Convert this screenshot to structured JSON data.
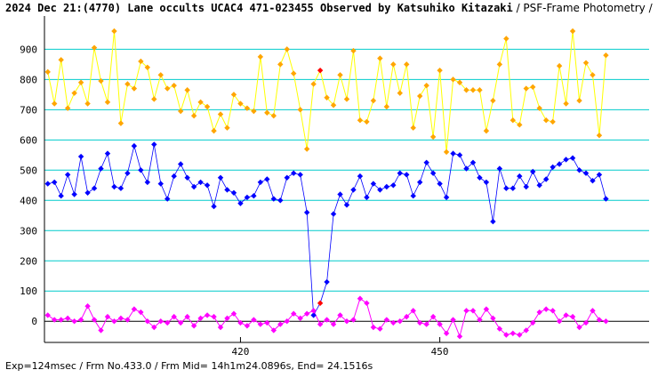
{
  "header": {
    "title": "2024 Dec 21:(4770) Lane occults UCAC4 471-023455 Observed by Katsuhiko Kitazaki",
    "subtitle": " / PSF-Frame Photometry /"
  },
  "footer": {
    "text": "Exp=124msec / Frm No.433.0 / Frm Mid= 14h1m24.0896s, End= 24.1516s"
  },
  "chart_data": {
    "type": "line",
    "x_start": 391,
    "x_step": 1,
    "xlim": [
      390.5,
      481.5
    ],
    "ylim": [
      -70,
      1010
    ],
    "yticks": [
      0,
      100,
      200,
      300,
      400,
      500,
      600,
      700,
      800,
      900
    ],
    "xticks": [
      420,
      450
    ],
    "grid_y": true,
    "colors": {
      "target": "#0000ff",
      "comparison": "#ffff00",
      "comparison_marker": "#ffa500",
      "background": "#ff00ff",
      "highlight": "#ff0000",
      "grid": "#00cccc"
    },
    "highlight_index": 41,
    "series": [
      {
        "key": "comparison",
        "values": [
          825,
          720,
          865,
          705,
          755,
          790,
          720,
          905,
          795,
          725,
          960,
          655,
          785,
          770,
          860,
          840,
          735,
          815,
          770,
          780,
          695,
          765,
          680,
          725,
          710,
          630,
          685,
          640,
          750,
          720,
          705,
          695,
          875,
          690,
          680,
          850,
          900,
          820,
          700,
          570,
          785,
          830,
          740,
          715,
          815,
          735,
          895,
          665,
          660,
          730,
          870,
          710,
          850,
          755,
          850,
          640,
          745,
          780,
          610,
          830,
          560,
          800,
          790,
          765,
          765,
          765,
          630,
          730,
          850,
          935,
          665,
          650,
          770,
          775,
          705,
          665,
          660,
          845,
          720,
          960,
          730,
          855,
          815,
          615,
          880
        ]
      },
      {
        "key": "target",
        "values": [
          455,
          460,
          415,
          485,
          420,
          545,
          425,
          440,
          505,
          555,
          445,
          440,
          490,
          580,
          500,
          460,
          585,
          455,
          405,
          480,
          520,
          475,
          445,
          460,
          450,
          380,
          475,
          435,
          425,
          390,
          410,
          415,
          460,
          470,
          405,
          400,
          475,
          490,
          485,
          360,
          20,
          60,
          130,
          355,
          420,
          385,
          435,
          480,
          410,
          455,
          435,
          445,
          450,
          490,
          485,
          415,
          460,
          525,
          490,
          455,
          410,
          555,
          550,
          505,
          525,
          475,
          460,
          330,
          505,
          440,
          440,
          480,
          445,
          495,
          450,
          470,
          510,
          520,
          535,
          540,
          500,
          490,
          465,
          485,
          405
        ]
      },
      {
        "key": "background",
        "values": [
          20,
          5,
          5,
          10,
          0,
          5,
          50,
          5,
          -30,
          15,
          0,
          10,
          5,
          40,
          30,
          0,
          -20,
          0,
          -5,
          15,
          -5,
          15,
          -15,
          10,
          20,
          15,
          -20,
          10,
          25,
          -5,
          -15,
          5,
          -10,
          -5,
          -30,
          -10,
          0,
          25,
          10,
          25,
          35,
          -10,
          5,
          -10,
          20,
          0,
          5,
          75,
          60,
          -20,
          -25,
          5,
          -5,
          0,
          15,
          35,
          -5,
          -10,
          15,
          -10,
          -40,
          5,
          -50,
          35,
          35,
          5,
          40,
          10,
          -25,
          -45,
          -40,
          -45,
          -30,
          -5,
          30,
          40,
          35,
          0,
          20,
          15,
          -20,
          -5,
          35,
          5,
          0
        ]
      }
    ]
  }
}
